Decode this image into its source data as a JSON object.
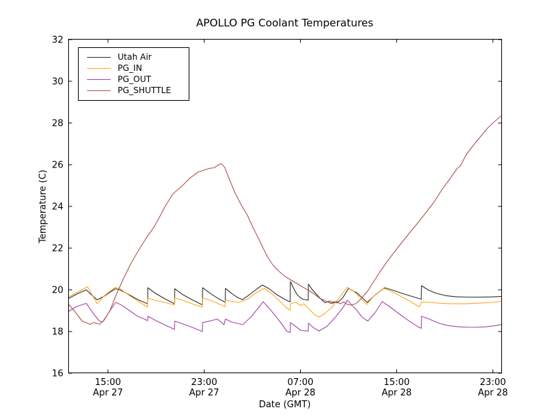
{
  "figure": {
    "background": "#ffffff"
  },
  "chart_data": {
    "type": "line",
    "title": "APOLLO PG Coolant Temperatures",
    "xlabel": "Date (GMT)",
    "ylabel": "Temperature (C)",
    "grid": false,
    "legend_position": "upper left",
    "x_range": [
      0,
      36
    ],
    "y_range": [
      16,
      32
    ],
    "y_ticks": [
      16,
      18,
      20,
      22,
      24,
      26,
      28,
      30,
      32
    ],
    "x_ticks": [
      {
        "pos": 3.3,
        "time": "15:00",
        "date": "Apr 27"
      },
      {
        "pos": 11.3,
        "time": "23:00",
        "date": "Apr 27"
      },
      {
        "pos": 19.3,
        "time": "07:00",
        "date": "Apr 28"
      },
      {
        "pos": 27.3,
        "time": "15:00",
        "date": "Apr 28"
      },
      {
        "pos": 35.3,
        "time": "23:00",
        "date": "Apr 28"
      }
    ],
    "series": [
      {
        "name": "Utah Air",
        "color": "#2e2e2e",
        "points": [
          [
            0,
            19.58
          ],
          [
            0.8,
            19.82
          ],
          [
            1.5,
            20.0
          ],
          [
            2.0,
            19.72
          ],
          [
            2.4,
            19.52
          ],
          [
            3.0,
            19.7
          ],
          [
            3.9,
            20.05
          ],
          [
            4.3,
            20.0
          ],
          [
            5.1,
            19.75
          ],
          [
            5.9,
            19.5
          ],
          [
            6.6,
            19.33
          ],
          [
            6.62,
            20.1
          ],
          [
            7.2,
            19.85
          ],
          [
            8.0,
            19.58
          ],
          [
            8.83,
            19.33
          ],
          [
            8.85,
            20.05
          ],
          [
            9.5,
            19.78
          ],
          [
            10.3,
            19.52
          ],
          [
            11.15,
            19.28
          ],
          [
            11.17,
            20.1
          ],
          [
            11.8,
            19.83
          ],
          [
            12.5,
            19.57
          ],
          [
            13.05,
            19.4
          ],
          [
            13.07,
            20.07
          ],
          [
            13.6,
            19.82
          ],
          [
            14.1,
            19.62
          ],
          [
            14.5,
            19.53
          ],
          [
            15.1,
            19.78
          ],
          [
            15.7,
            20.05
          ],
          [
            16.15,
            20.23
          ],
          [
            16.7,
            20.05
          ],
          [
            17.3,
            19.78
          ],
          [
            18.2,
            19.48
          ],
          [
            18.45,
            19.42
          ],
          [
            18.47,
            20.4
          ],
          [
            18.75,
            20.05
          ],
          [
            19.05,
            19.75
          ],
          [
            19.3,
            19.62
          ],
          [
            19.5,
            19.55
          ],
          [
            19.95,
            19.5
          ],
          [
            19.97,
            20.27
          ],
          [
            20.3,
            20.0
          ],
          [
            20.8,
            19.68
          ],
          [
            21.2,
            19.45
          ],
          [
            21.35,
            19.38
          ],
          [
            21.6,
            19.43
          ],
          [
            21.85,
            19.35
          ],
          [
            22.1,
            19.43
          ],
          [
            22.35,
            19.37
          ],
          [
            22.8,
            19.6
          ],
          [
            23.3,
            20.07
          ],
          [
            24.0,
            19.85
          ],
          [
            24.85,
            19.4
          ],
          [
            25.5,
            19.75
          ],
          [
            26.3,
            20.1
          ],
          [
            27.0,
            19.98
          ],
          [
            27.8,
            19.82
          ],
          [
            28.6,
            19.68
          ],
          [
            29.35,
            19.55
          ],
          [
            29.37,
            20.2
          ],
          [
            29.9,
            20.0
          ],
          [
            30.6,
            19.83
          ],
          [
            31.4,
            19.72
          ],
          [
            32.2,
            19.67
          ],
          [
            33.2,
            19.65
          ],
          [
            34.2,
            19.65
          ],
          [
            35.2,
            19.66
          ],
          [
            36,
            19.68
          ]
        ]
      },
      {
        "name": "PG_IN",
        "color": "#ffa620",
        "points": [
          [
            0,
            19.65
          ],
          [
            0.9,
            19.92
          ],
          [
            1.6,
            20.15
          ],
          [
            2.05,
            19.7
          ],
          [
            2.4,
            19.33
          ],
          [
            3.0,
            19.72
          ],
          [
            3.9,
            20.12
          ],
          [
            4.3,
            20.05
          ],
          [
            5.1,
            19.72
          ],
          [
            5.9,
            19.42
          ],
          [
            6.58,
            19.17
          ],
          [
            6.62,
            19.6
          ],
          [
            7.2,
            19.5
          ],
          [
            8.0,
            19.4
          ],
          [
            8.83,
            19.27
          ],
          [
            8.85,
            19.62
          ],
          [
            9.5,
            19.5
          ],
          [
            10.3,
            19.33
          ],
          [
            11.15,
            19.17
          ],
          [
            11.17,
            19.6
          ],
          [
            11.8,
            19.5
          ],
          [
            12.5,
            19.33
          ],
          [
            13.03,
            19.2
          ],
          [
            13.07,
            19.5
          ],
          [
            13.6,
            19.45
          ],
          [
            14.2,
            19.4
          ],
          [
            14.9,
            19.55
          ],
          [
            15.6,
            19.85
          ],
          [
            16.3,
            20.07
          ],
          [
            16.9,
            19.82
          ],
          [
            17.5,
            19.5
          ],
          [
            18.2,
            19.1
          ],
          [
            18.45,
            19.03
          ],
          [
            18.47,
            19.33
          ],
          [
            18.9,
            19.4
          ],
          [
            19.3,
            19.25
          ],
          [
            19.6,
            19.33
          ],
          [
            20.0,
            19.08
          ],
          [
            20.5,
            18.8
          ],
          [
            20.85,
            18.7
          ],
          [
            21.3,
            18.85
          ],
          [
            21.9,
            19.15
          ],
          [
            22.5,
            19.6
          ],
          [
            23.2,
            20.12
          ],
          [
            23.7,
            19.95
          ],
          [
            24.3,
            19.6
          ],
          [
            24.8,
            19.3
          ],
          [
            25.4,
            19.7
          ],
          [
            26.2,
            20.07
          ],
          [
            26.8,
            19.95
          ],
          [
            27.6,
            19.7
          ],
          [
            28.4,
            19.45
          ],
          [
            29.2,
            19.18
          ],
          [
            29.37,
            19.42
          ],
          [
            30.0,
            19.4
          ],
          [
            30.8,
            19.36
          ],
          [
            31.8,
            19.33
          ],
          [
            33.0,
            19.33
          ],
          [
            34.2,
            19.36
          ],
          [
            35.2,
            19.4
          ],
          [
            36,
            19.45
          ]
        ]
      },
      {
        "name": "PG_OUT",
        "color": "#a645a8",
        "points": [
          [
            0,
            18.95
          ],
          [
            0.7,
            19.2
          ],
          [
            1.5,
            19.35
          ],
          [
            2.1,
            18.85
          ],
          [
            2.6,
            18.5
          ],
          [
            2.85,
            18.45
          ],
          [
            3.3,
            18.85
          ],
          [
            3.95,
            19.4
          ],
          [
            4.4,
            19.28
          ],
          [
            5.1,
            19.0
          ],
          [
            5.8,
            18.72
          ],
          [
            6.4,
            18.58
          ],
          [
            6.6,
            18.52
          ],
          [
            6.62,
            18.73
          ],
          [
            7.3,
            18.52
          ],
          [
            8.1,
            18.3
          ],
          [
            8.83,
            18.1
          ],
          [
            8.85,
            18.5
          ],
          [
            9.6,
            18.35
          ],
          [
            10.4,
            18.18
          ],
          [
            11.15,
            18.0
          ],
          [
            11.17,
            18.43
          ],
          [
            11.9,
            18.52
          ],
          [
            12.4,
            18.6
          ],
          [
            12.95,
            18.33
          ],
          [
            13.07,
            18.6
          ],
          [
            13.6,
            18.45
          ],
          [
            14.5,
            18.33
          ],
          [
            15.2,
            18.7
          ],
          [
            15.9,
            19.2
          ],
          [
            16.2,
            19.43
          ],
          [
            16.8,
            19.05
          ],
          [
            17.5,
            18.55
          ],
          [
            18.2,
            18.0
          ],
          [
            18.45,
            17.95
          ],
          [
            18.47,
            18.43
          ],
          [
            19.0,
            18.2
          ],
          [
            19.35,
            18.05
          ],
          [
            19.95,
            18.02
          ],
          [
            19.97,
            18.4
          ],
          [
            20.4,
            18.18
          ],
          [
            20.85,
            18.02
          ],
          [
            21.5,
            18.25
          ],
          [
            22.2,
            18.68
          ],
          [
            22.9,
            19.2
          ],
          [
            23.2,
            19.5
          ],
          [
            23.9,
            19.08
          ],
          [
            24.45,
            18.68
          ],
          [
            24.9,
            18.5
          ],
          [
            25.5,
            18.9
          ],
          [
            26.1,
            19.43
          ],
          [
            26.7,
            19.2
          ],
          [
            27.5,
            18.85
          ],
          [
            28.3,
            18.52
          ],
          [
            29.1,
            18.22
          ],
          [
            29.35,
            18.15
          ],
          [
            29.37,
            18.73
          ],
          [
            30.0,
            18.6
          ],
          [
            30.8,
            18.4
          ],
          [
            31.6,
            18.28
          ],
          [
            32.6,
            18.22
          ],
          [
            33.6,
            18.2
          ],
          [
            34.6,
            18.22
          ],
          [
            35.5,
            18.28
          ],
          [
            36,
            18.33
          ]
        ]
      },
      {
        "name": "PG_SHUTTLE",
        "color": "#b0534d",
        "points": [
          [
            0,
            19.32
          ],
          [
            0.5,
            19.0
          ],
          [
            1.16,
            18.5
          ],
          [
            1.8,
            18.35
          ],
          [
            2.15,
            18.43
          ],
          [
            2.6,
            18.35
          ],
          [
            3.0,
            18.55
          ],
          [
            3.5,
            19.05
          ],
          [
            4.05,
            19.85
          ],
          [
            4.6,
            20.55
          ],
          [
            5.2,
            21.25
          ],
          [
            5.8,
            21.85
          ],
          [
            6.5,
            22.5
          ],
          [
            7.12,
            23.0
          ],
          [
            7.6,
            23.5
          ],
          [
            8.05,
            24.0
          ],
          [
            8.7,
            24.6
          ],
          [
            9.5,
            25.0
          ],
          [
            10.1,
            25.35
          ],
          [
            10.8,
            25.65
          ],
          [
            11.2,
            25.72
          ],
          [
            11.7,
            25.82
          ],
          [
            12.1,
            25.85
          ],
          [
            12.45,
            25.97
          ],
          [
            12.73,
            26.05
          ],
          [
            13.0,
            25.88
          ],
          [
            13.4,
            25.3
          ],
          [
            13.85,
            24.67
          ],
          [
            14.4,
            24.05
          ],
          [
            14.9,
            23.57
          ],
          [
            15.3,
            23.05
          ],
          [
            15.74,
            22.55
          ],
          [
            16.2,
            22.0
          ],
          [
            16.6,
            21.55
          ],
          [
            17.0,
            21.2
          ],
          [
            17.4,
            20.95
          ],
          [
            18.0,
            20.65
          ],
          [
            18.63,
            20.43
          ],
          [
            19.3,
            20.2
          ],
          [
            19.9,
            20.0
          ],
          [
            20.37,
            19.83
          ],
          [
            20.9,
            19.6
          ],
          [
            21.53,
            19.43
          ],
          [
            21.8,
            19.47
          ],
          [
            22.0,
            19.35
          ],
          [
            22.3,
            19.45
          ],
          [
            22.6,
            19.33
          ],
          [
            22.9,
            19.42
          ],
          [
            23.2,
            19.3
          ],
          [
            23.5,
            19.27
          ],
          [
            23.9,
            19.33
          ],
          [
            24.4,
            19.6
          ],
          [
            24.9,
            19.95
          ],
          [
            25.4,
            20.4
          ],
          [
            25.9,
            20.85
          ],
          [
            26.5,
            21.35
          ],
          [
            27.1,
            21.8
          ],
          [
            27.7,
            22.25
          ],
          [
            28.4,
            22.75
          ],
          [
            29.05,
            23.2
          ],
          [
            29.7,
            23.68
          ],
          [
            30.4,
            24.2
          ],
          [
            31.1,
            24.83
          ],
          [
            31.7,
            25.3
          ],
          [
            32.3,
            25.8
          ],
          [
            32.6,
            25.95
          ],
          [
            33.1,
            26.5
          ],
          [
            33.7,
            26.95
          ],
          [
            34.2,
            27.3
          ],
          [
            34.85,
            27.75
          ],
          [
            35.3,
            28.0
          ],
          [
            36,
            28.35
          ]
        ]
      }
    ]
  }
}
